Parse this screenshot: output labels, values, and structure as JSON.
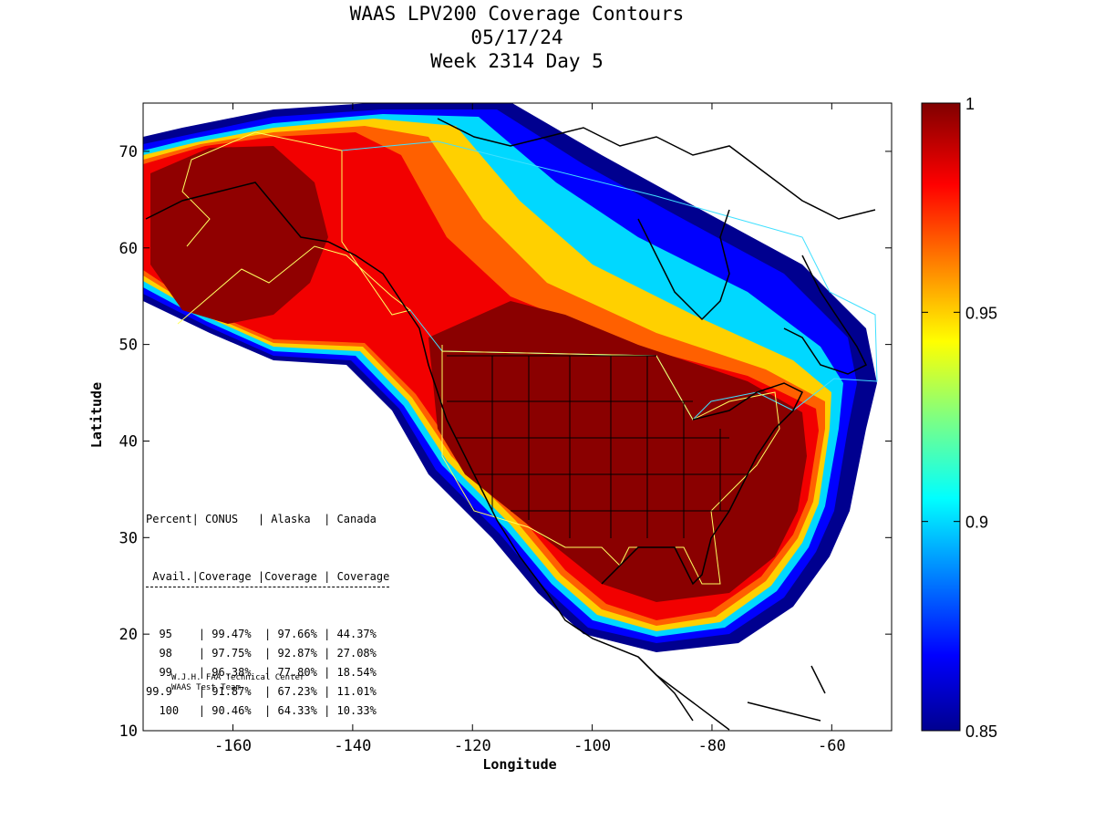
{
  "title": {
    "line1": "WAAS LPV200 Coverage Contours",
    "line2": "05/17/24",
    "line3": "Week 2314 Day 5"
  },
  "axes": {
    "xlabel": "Longitude",
    "ylabel": "Latitude",
    "xticks": [
      "-160",
      "-140",
      "-120",
      "-100",
      "-80",
      "-60"
    ],
    "yticks": [
      "70",
      "60",
      "50",
      "40",
      "30",
      "20",
      "10"
    ],
    "xlim": [
      -175,
      -50
    ],
    "ylim": [
      10,
      75
    ]
  },
  "colorbar": {
    "ticks": [
      "1",
      "0.95",
      "0.9",
      "0.85"
    ],
    "range": [
      0.85,
      1.0
    ],
    "colormap": "jet"
  },
  "stats_table": {
    "header1": [
      "Percent",
      "CONUS",
      "Alaska",
      "Canada"
    ],
    "header2": [
      "Avail.",
      "Coverage",
      "Coverage",
      "Coverage"
    ],
    "rows": [
      [
        "95",
        "99.47%",
        "97.66%",
        "44.37%"
      ],
      [
        "98",
        "97.75%",
        "92.87%",
        "27.08%"
      ],
      [
        "99",
        "96.38%",
        "77.80%",
        "18.54%"
      ],
      [
        "99.9",
        "91.87%",
        "67.23%",
        "11.01%"
      ],
      [
        "100",
        "90.46%",
        "64.33%",
        "10.33%"
      ]
    ]
  },
  "credit": {
    "line1": "W.J.H. FAA Technical Center",
    "line2": "WAAS Test Team"
  },
  "colors": {
    "dark_red": "#800000",
    "red": "#ff0000",
    "orange": "#ff8000",
    "yellow": "#ffff00",
    "cyan": "#00ffff",
    "blue": "#0000ff",
    "navy": "#00008f",
    "conus_border": "#ffff40",
    "canada_border": "#40e0ff"
  }
}
